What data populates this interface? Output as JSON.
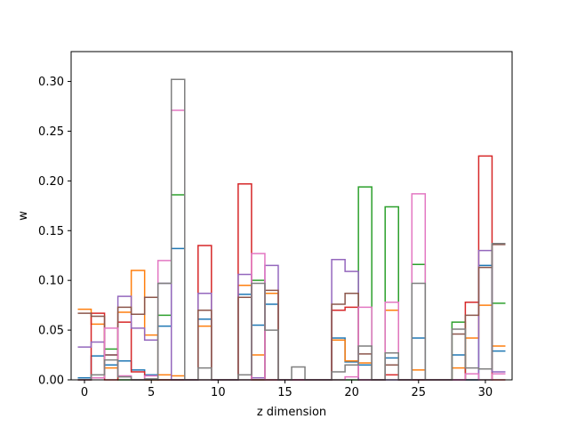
{
  "chart_data": {
    "type": "step",
    "xlabel": "z dimension",
    "ylabel": "w",
    "xlim": [
      -1.0,
      32.0
    ],
    "ylim": [
      0.0,
      0.33
    ],
    "x_ticks": [
      0,
      5,
      10,
      15,
      20,
      25,
      30
    ],
    "x_tick_labels": [
      "0",
      "5",
      "10",
      "15",
      "20",
      "25",
      "30"
    ],
    "y_ticks": [
      0.0,
      0.05,
      0.1,
      0.15,
      0.2,
      0.25,
      0.3
    ],
    "y_tick_labels": [
      "0.00",
      "0.05",
      "0.10",
      "0.15",
      "0.20",
      "0.25",
      "0.30"
    ],
    "step_where": "mid",
    "grid": false,
    "legend": "none",
    "x": [
      0,
      1,
      2,
      3,
      4,
      5,
      6,
      7,
      8,
      9,
      10,
      11,
      12,
      13,
      14,
      15,
      16,
      17,
      18,
      19,
      20,
      21,
      22,
      23,
      24,
      25,
      26,
      27,
      28,
      29,
      30,
      31
    ],
    "series": [
      {
        "color": "#1f77b4",
        "values": [
          0.002,
          0.024,
          0.015,
          0.019,
          0.01,
          0.005,
          0.054,
          0.132,
          0.0,
          0.061,
          0.0,
          0.0,
          0.086,
          0.055,
          0.076,
          0.0,
          0.0,
          0.0,
          0.0,
          0.042,
          0.018,
          0.015,
          0.0,
          0.022,
          0.0,
          0.042,
          0.0,
          0.0,
          0.025,
          0.0,
          0.115,
          0.029
        ]
      },
      {
        "color": "#ff7f0e",
        "values": [
          0.071,
          0.056,
          0.012,
          0.068,
          0.11,
          0.045,
          0.005,
          0.004,
          0.0,
          0.054,
          0.0,
          0.0,
          0.095,
          0.025,
          0.087,
          0.0,
          0.0,
          0.0,
          0.0,
          0.04,
          0.019,
          0.017,
          0.0,
          0.07,
          0.0,
          0.01,
          0.0,
          0.0,
          0.012,
          0.042,
          0.075,
          0.034
        ]
      },
      {
        "color": "#2ca02c",
        "values": [
          0.0,
          0.002,
          0.031,
          0.0,
          0.0,
          0.0,
          0.065,
          0.186,
          0.0,
          0.0,
          0.0,
          0.0,
          0.0,
          0.1,
          0.0,
          0.0,
          0.0,
          0.0,
          0.0,
          0.0,
          0.0,
          0.194,
          0.0,
          0.174,
          0.0,
          0.116,
          0.0,
          0.0,
          0.058,
          0.0,
          0.0,
          0.077
        ]
      },
      {
        "color": "#d62728",
        "values": [
          0.0,
          0.067,
          0.0,
          0.058,
          0.008,
          0.0,
          0.0,
          0.0,
          0.0,
          0.135,
          0.0,
          0.0,
          0.197,
          0.0,
          0.0,
          0.0,
          0.0,
          0.0,
          0.0,
          0.07,
          0.073,
          0.0,
          0.0,
          0.005,
          0.0,
          0.0,
          0.0,
          0.0,
          0.0,
          0.078,
          0.225,
          0.0
        ]
      },
      {
        "color": "#9467bd",
        "values": [
          0.033,
          0.038,
          0.025,
          0.084,
          0.052,
          0.04,
          0.097,
          0.0,
          0.0,
          0.087,
          0.0,
          0.0,
          0.106,
          0.002,
          0.115,
          0.0,
          0.0,
          0.0,
          0.0,
          0.121,
          0.109,
          0.0,
          0.0,
          0.0,
          0.0,
          0.0,
          0.0,
          0.0,
          0.0,
          0.0,
          0.13,
          0.008
        ]
      },
      {
        "color": "#8c564b",
        "values": [
          0.067,
          0.064,
          0.025,
          0.073,
          0.066,
          0.083,
          0.0,
          0.0,
          0.0,
          0.07,
          0.0,
          0.0,
          0.083,
          0.0,
          0.09,
          0.0,
          0.0,
          0.0,
          0.0,
          0.076,
          0.087,
          0.026,
          0.0,
          0.015,
          0.0,
          0.0,
          0.0,
          0.0,
          0.046,
          0.065,
          0.113,
          0.136
        ]
      },
      {
        "color": "#e377c2",
        "values": [
          0.0,
          0.002,
          0.052,
          0.004,
          0.0,
          0.004,
          0.12,
          0.271,
          0.0,
          0.0,
          0.0,
          0.0,
          0.0,
          0.127,
          0.0,
          0.0,
          0.0,
          0.0,
          0.0,
          0.0,
          0.003,
          0.073,
          0.0,
          0.078,
          0.0,
          0.187,
          0.0,
          0.0,
          0.0,
          0.006,
          0.0,
          0.006
        ]
      },
      {
        "color": "#7f7f7f",
        "values": [
          0.0,
          0.005,
          0.02,
          0.003,
          0.0,
          0.001,
          0.097,
          0.302,
          0.0,
          0.012,
          0.0,
          0.0,
          0.005,
          0.097,
          0.05,
          0.0,
          0.013,
          0.0,
          0.0,
          0.008,
          0.015,
          0.034,
          0.0,
          0.027,
          0.0,
          0.097,
          0.0,
          0.0,
          0.051,
          0.012,
          0.011,
          0.137
        ]
      }
    ]
  }
}
